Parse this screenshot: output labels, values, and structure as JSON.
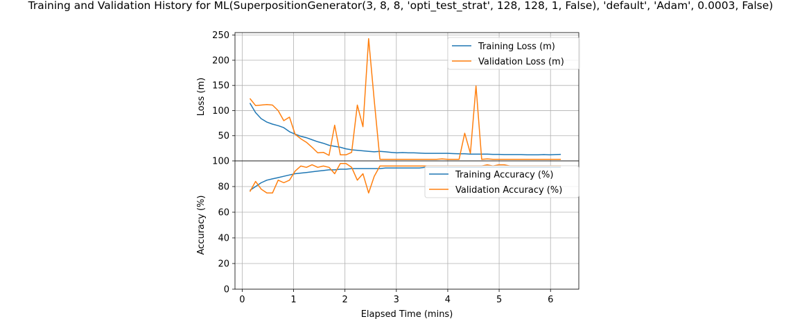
{
  "figure": {
    "title": "Training and Validation History for ML(SuperpositionGenerator(3, 8, 8, 'opti_test_strat', 128, 128, 1, False), 'default', 'Adam', 0.0003, False)"
  },
  "chart_data": [
    {
      "type": "line",
      "xlabel": "",
      "ylabel": "Loss (m)",
      "xlim": [
        -0.14,
        6.55
      ],
      "ylim": [
        0,
        255
      ],
      "grid": true,
      "legend_position": "top-right",
      "xticks": [
        0,
        1,
        2,
        3,
        4,
        5,
        6
      ],
      "yticks": [
        50,
        100,
        150,
        200,
        250
      ],
      "x": [
        0.15,
        0.26,
        0.37,
        0.48,
        0.59,
        0.7,
        0.81,
        0.92,
        1.03,
        1.14,
        1.25,
        1.36,
        1.47,
        1.58,
        1.69,
        1.8,
        1.91,
        2.02,
        2.13,
        2.24,
        2.35,
        2.46,
        2.57,
        2.68,
        2.79,
        2.9,
        3.01,
        3.12,
        3.23,
        3.34,
        3.45,
        3.56,
        3.67,
        3.78,
        3.89,
        4.0,
        4.11,
        4.22,
        4.33,
        4.44,
        4.55,
        4.66,
        4.77,
        4.88,
        4.99,
        5.1,
        5.21,
        5.32,
        5.43,
        5.54,
        5.65,
        5.76,
        5.87,
        5.98,
        6.09,
        6.2
      ],
      "series": [
        {
          "name": "Training Loss (m)",
          "color": "#1f77b4",
          "values": [
            115,
            96,
            84,
            77,
            73,
            70,
            66,
            58,
            53,
            49,
            46,
            42,
            38,
            35,
            31,
            29,
            27,
            24,
            22,
            21,
            20,
            19,
            18,
            19,
            18,
            17,
            16,
            16.5,
            16,
            16,
            15.5,
            15,
            15,
            15,
            15,
            15,
            14.5,
            14,
            14,
            13.5,
            13.5,
            13.5,
            13.5,
            13,
            13,
            12.5,
            12.5,
            12.5,
            12.5,
            12,
            12,
            12,
            12.5,
            12,
            12.5,
            13
          ]
        },
        {
          "name": "Validation Loss (m)",
          "color": "#ff7f0e",
          "values": [
            124,
            110,
            111,
            112,
            111,
            100,
            80,
            87,
            53,
            44,
            37,
            27,
            16,
            17,
            11,
            71,
            12,
            12,
            17,
            111,
            68,
            243,
            120,
            3,
            3,
            3,
            3,
            3,
            3,
            3,
            3,
            3,
            3,
            3,
            4,
            3,
            3,
            3,
            55,
            15,
            149,
            3,
            4,
            3,
            3,
            3,
            3,
            3,
            3,
            3,
            3,
            3,
            3,
            3,
            3,
            3
          ]
        }
      ]
    },
    {
      "type": "line",
      "xlabel": "Elapsed Time (mins)",
      "ylabel": "Accuracy (%)",
      "xlim": [
        -0.14,
        6.55
      ],
      "ylim": [
        0,
        100
      ],
      "grid": true,
      "legend_position": "top-right",
      "xticks": [
        0,
        1,
        2,
        3,
        4,
        5,
        6
      ],
      "yticks": [
        0,
        20,
        40,
        60,
        80,
        100
      ],
      "x": [
        0.15,
        0.26,
        0.37,
        0.48,
        0.59,
        0.7,
        0.81,
        0.92,
        1.03,
        1.14,
        1.25,
        1.36,
        1.47,
        1.58,
        1.69,
        1.8,
        1.91,
        2.02,
        2.13,
        2.24,
        2.35,
        2.46,
        2.57,
        2.68,
        2.79,
        2.9,
        3.01,
        3.12,
        3.23,
        3.34,
        3.45,
        3.56,
        3.67,
        3.78,
        3.89,
        4.0,
        4.11,
        4.22,
        4.33,
        4.44,
        4.55,
        4.66,
        4.77,
        4.88,
        4.99,
        5.1,
        5.21,
        5.32,
        5.43,
        5.54,
        5.65,
        5.76,
        5.87,
        5.98,
        6.09,
        6.2
      ],
      "series": [
        {
          "name": "Training Accuracy (%)",
          "color": "#1f77b4",
          "values": [
            77,
            80,
            83,
            85,
            86,
            87,
            88,
            89,
            90,
            90.5,
            91,
            91.5,
            92,
            92.5,
            93,
            93,
            93.5,
            93.5,
            94,
            94,
            94,
            94,
            94,
            94,
            94.5,
            94.5,
            94.5,
            94.5,
            94.5,
            94.5,
            94.5,
            95,
            95,
            95,
            95,
            95,
            95,
            95,
            95,
            95,
            95,
            95,
            95,
            95,
            95,
            95,
            95,
            95,
            95,
            95,
            95,
            95,
            95,
            95,
            95,
            95
          ]
        },
        {
          "name": "Validation Accuracy (%)",
          "color": "#ff7f0e",
          "values": [
            76,
            84,
            78,
            75,
            75,
            85,
            83,
            85,
            92,
            96,
            95,
            97,
            95,
            96,
            95,
            90,
            98,
            98,
            95,
            85,
            90,
            75,
            88,
            96,
            96,
            96,
            96,
            96,
            96,
            96,
            96,
            96,
            96,
            96,
            96,
            96,
            96,
            96,
            96,
            96,
            96,
            96,
            97,
            96,
            97,
            97,
            96,
            96,
            96,
            96,
            96,
            96,
            96,
            96,
            96,
            96
          ]
        }
      ]
    }
  ]
}
